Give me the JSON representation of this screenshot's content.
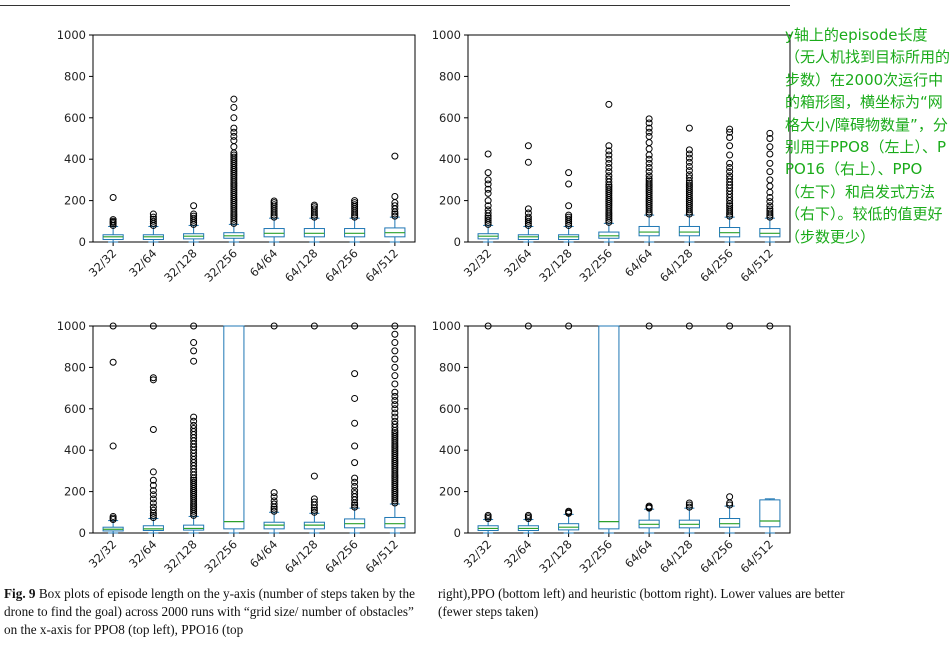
{
  "annotation": {
    "text": "y轴上的episode长度（无人机找到目标所用的步数）在2000次运行中的箱形图，横坐标为“网格大小/障碍物数量”，分别用于PPO8（左上）、PPO16（右上）、PPO（左下）和启发式方法（右下）。较低的值更好（步数更少）",
    "color": "#1aab1a"
  },
  "caption": {
    "label": "Fig. 9",
    "left_col": "Box plots of episode length on the y-axis (number of steps taken by the drone to find the goal) across 2000 runs with “grid size/ number of obstacles” on the x-axis for PPO8 (top left), PPO16 (top",
    "right_col": "right),PPO (bottom left) and heuristic (bottom right). Lower values are better (fewer steps taken)"
  },
  "colors": {
    "box": "#1f77b4",
    "median": "#2ca02c",
    "flier": "#000000"
  },
  "chart_data": [
    {
      "type": "box",
      "ylim": [
        0,
        1000
      ],
      "yticks": [
        "0",
        "200",
        "400",
        "600",
        "800",
        "1000"
      ],
      "categories": [
        "32/32",
        "32/64",
        "32/128",
        "32/256",
        "64/64",
        "64/128",
        "64/256",
        "64/512"
      ],
      "boxes": [
        {
          "q1": 12,
          "median": 25,
          "q3": 35,
          "whisker_low": 0,
          "whisker_high": 75,
          "fliers": [
            80,
            88,
            95,
            100,
            108,
            215
          ]
        },
        {
          "q1": 12,
          "median": 25,
          "q3": 35,
          "whisker_low": 0,
          "whisker_high": 75,
          "fliers": [
            80,
            90,
            100,
            110,
            120,
            135
          ]
        },
        {
          "q1": 15,
          "median": 28,
          "q3": 40,
          "whisker_low": 0,
          "whisker_high": 80,
          "fliers": [
            85,
            95,
            105,
            115,
            125,
            135,
            175
          ]
        },
        {
          "q1": 18,
          "median": 30,
          "q3": 45,
          "whisker_low": 0,
          "whisker_high": 85,
          "fliers": [
            90,
            100,
            110,
            120,
            130,
            140,
            150,
            160,
            170,
            180,
            190,
            200,
            210,
            220,
            230,
            240,
            250,
            260,
            270,
            280,
            290,
            300,
            310,
            320,
            330,
            340,
            350,
            360,
            370,
            380,
            390,
            400,
            410,
            420,
            430,
            460,
            490,
            510,
            530,
            550,
            600,
            650,
            690
          ]
        },
        {
          "q1": 25,
          "median": 42,
          "q3": 65,
          "whisker_low": 0,
          "whisker_high": 115,
          "fliers": [
            120,
            130,
            140,
            150,
            160,
            170,
            180,
            190,
            198
          ]
        },
        {
          "q1": 25,
          "median": 42,
          "q3": 65,
          "whisker_low": 0,
          "whisker_high": 115,
          "fliers": [
            120,
            130,
            140,
            150,
            160,
            170,
            178
          ]
        },
        {
          "q1": 25,
          "median": 42,
          "q3": 65,
          "whisker_low": 0,
          "whisker_high": 115,
          "fliers": [
            120,
            130,
            140,
            150,
            160,
            170,
            180,
            190,
            200
          ]
        },
        {
          "q1": 25,
          "median": 45,
          "q3": 68,
          "whisker_low": 0,
          "whisker_high": 120,
          "fliers": [
            125,
            135,
            145,
            160,
            175,
            190,
            220,
            415
          ]
        }
      ]
    },
    {
      "type": "box",
      "ylim": [
        0,
        1000
      ],
      "yticks": [
        "0",
        "200",
        "400",
        "600",
        "800",
        "1000"
      ],
      "categories": [
        "32/32",
        "32/64",
        "32/128",
        "32/256",
        "64/64",
        "64/128",
        "64/256",
        "64/512"
      ],
      "boxes": [
        {
          "q1": 15,
          "median": 28,
          "q3": 40,
          "whisker_low": 0,
          "whisker_high": 80,
          "fliers": [
            85,
            95,
            105,
            115,
            125,
            140,
            155,
            175,
            200,
            235,
            255,
            280,
            300,
            335,
            425
          ]
        },
        {
          "q1": 12,
          "median": 25,
          "q3": 35,
          "whisker_low": 0,
          "whisker_high": 75,
          "fliers": [
            80,
            90,
            100,
            110,
            120,
            140,
            160,
            385,
            465
          ]
        },
        {
          "q1": 12,
          "median": 25,
          "q3": 35,
          "whisker_low": 0,
          "whisker_high": 75,
          "fliers": [
            80,
            90,
            100,
            110,
            120,
            130,
            175,
            280,
            335
          ]
        },
        {
          "q1": 18,
          "median": 30,
          "q3": 48,
          "whisker_low": 0,
          "whisker_high": 90,
          "fliers": [
            95,
            105,
            115,
            125,
            135,
            145,
            155,
            165,
            175,
            185,
            195,
            205,
            215,
            225,
            235,
            245,
            255,
            265,
            275,
            290,
            305,
            320,
            340,
            360,
            380,
            400,
            420,
            440,
            465,
            665
          ]
        },
        {
          "q1": 30,
          "median": 48,
          "q3": 75,
          "whisker_low": 0,
          "whisker_high": 130,
          "fliers": [
            135,
            145,
            155,
            165,
            175,
            185,
            195,
            205,
            215,
            225,
            235,
            245,
            255,
            265,
            275,
            285,
            295,
            305,
            320,
            340,
            360,
            380,
            400,
            420,
            450,
            480,
            510,
            530,
            550,
            575,
            595
          ]
        },
        {
          "q1": 30,
          "median": 48,
          "q3": 75,
          "whisker_low": 0,
          "whisker_high": 130,
          "fliers": [
            135,
            145,
            155,
            165,
            175,
            185,
            195,
            205,
            215,
            225,
            235,
            245,
            255,
            265,
            275,
            285,
            295,
            310,
            325,
            345,
            365,
            385,
            405,
            425,
            445,
            550
          ]
        },
        {
          "q1": 25,
          "median": 45,
          "q3": 70,
          "whisker_low": 0,
          "whisker_high": 120,
          "fliers": [
            125,
            135,
            145,
            155,
            165,
            175,
            185,
            200,
            215,
            230,
            245,
            260,
            275,
            290,
            305,
            320,
            340,
            360,
            380,
            420,
            465,
            505,
            530,
            545
          ]
        },
        {
          "q1": 25,
          "median": 42,
          "q3": 65,
          "whisker_low": 0,
          "whisker_high": 115,
          "fliers": [
            120,
            130,
            140,
            150,
            160,
            175,
            195,
            215,
            240,
            270,
            300,
            340,
            380,
            425,
            460,
            500,
            525
          ]
        }
      ]
    },
    {
      "type": "box",
      "ylim": [
        0,
        1000
      ],
      "yticks": [
        "0",
        "200",
        "400",
        "600",
        "800",
        "1000"
      ],
      "categories": [
        "32/32",
        "32/64",
        "32/128",
        "32/256",
        "64/64",
        "64/128",
        "64/256",
        "64/512"
      ],
      "boxes": [
        {
          "q1": 10,
          "median": 18,
          "q3": 28,
          "whisker_low": 0,
          "whisker_high": 60,
          "fliers": [
            65,
            72,
            80,
            420,
            825,
            1000
          ]
        },
        {
          "q1": 12,
          "median": 20,
          "q3": 35,
          "whisker_low": 0,
          "whisker_high": 70,
          "fliers": [
            75,
            85,
            95,
            110,
            125,
            145,
            165,
            185,
            205,
            230,
            255,
            295,
            500,
            740,
            750,
            1000
          ]
        },
        {
          "q1": 14,
          "median": 22,
          "q3": 38,
          "whisker_low": 0,
          "whisker_high": 80,
          "fliers": [
            85,
            95,
            105,
            115,
            125,
            135,
            145,
            155,
            165,
            175,
            185,
            195,
            205,
            215,
            225,
            235,
            245,
            255,
            265,
            280,
            295,
            310,
            325,
            340,
            355,
            370,
            385,
            400,
            415,
            430,
            445,
            460,
            475,
            490,
            505,
            520,
            540,
            560,
            830,
            880,
            920,
            1000
          ]
        },
        {
          "q1": 20,
          "median": 55,
          "q3": 1000,
          "whisker_low": 0,
          "whisker_high": 1000,
          "fliers": []
        },
        {
          "q1": 20,
          "median": 38,
          "q3": 52,
          "whisker_low": 0,
          "whisker_high": 100,
          "fliers": [
            105,
            115,
            125,
            140,
            155,
            175,
            195,
            1000
          ]
        },
        {
          "q1": 20,
          "median": 38,
          "q3": 52,
          "whisker_low": 0,
          "whisker_high": 95,
          "fliers": [
            100,
            110,
            120,
            135,
            150,
            165,
            275,
            1000
          ]
        },
        {
          "q1": 25,
          "median": 45,
          "q3": 68,
          "whisker_low": 0,
          "whisker_high": 120,
          "fliers": [
            125,
            135,
            145,
            160,
            175,
            190,
            205,
            225,
            245,
            265,
            340,
            420,
            530,
            650,
            770,
            1000
          ]
        },
        {
          "q1": 25,
          "median": 45,
          "q3": 75,
          "whisker_low": 0,
          "whisker_high": 140,
          "fliers": [
            145,
            155,
            165,
            175,
            185,
            195,
            205,
            215,
            225,
            235,
            245,
            255,
            265,
            275,
            285,
            295,
            305,
            315,
            325,
            335,
            345,
            355,
            365,
            375,
            385,
            395,
            405,
            415,
            425,
            435,
            445,
            455,
            465,
            475,
            485,
            495,
            510,
            525,
            540,
            560,
            580,
            600,
            620,
            640,
            660,
            680,
            720,
            760,
            800,
            840,
            880,
            920,
            960,
            1000
          ]
        }
      ]
    },
    {
      "type": "box",
      "ylim": [
        0,
        1000
      ],
      "yticks": [
        "0",
        "200",
        "400",
        "600",
        "800",
        "1000"
      ],
      "categories": [
        "32/32",
        "32/64",
        "32/128",
        "32/256",
        "64/64",
        "64/128",
        "64/256",
        "64/512"
      ],
      "boxes": [
        {
          "q1": 12,
          "median": 22,
          "q3": 35,
          "whisker_low": 0,
          "whisker_high": 65,
          "fliers": [
            70,
            78,
            85,
            1000
          ]
        },
        {
          "q1": 12,
          "median": 22,
          "q3": 35,
          "whisker_low": 0,
          "whisker_high": 65,
          "fliers": [
            70,
            78,
            85,
            1000
          ]
        },
        {
          "q1": 15,
          "median": 28,
          "q3": 45,
          "whisker_low": 0,
          "whisker_high": 90,
          "fliers": [
            95,
            100,
            105,
            1000
          ]
        },
        {
          "q1": 20,
          "median": 55,
          "q3": 1000,
          "whisker_low": 0,
          "whisker_high": 1000,
          "fliers": []
        },
        {
          "q1": 25,
          "median": 42,
          "q3": 62,
          "whisker_low": 0,
          "whisker_high": 115,
          "fliers": [
            120,
            125,
            130,
            1000
          ]
        },
        {
          "q1": 25,
          "median": 42,
          "q3": 62,
          "whisker_low": 0,
          "whisker_high": 120,
          "fliers": [
            125,
            135,
            145,
            1000
          ]
        },
        {
          "q1": 28,
          "median": 45,
          "q3": 70,
          "whisker_low": 0,
          "whisker_high": 130,
          "fliers": [
            135,
            145,
            175,
            1000
          ]
        },
        {
          "q1": 30,
          "median": 58,
          "q3": 160,
          "whisker_low": 0,
          "whisker_high": 165,
          "fliers": [
            1000
          ]
        }
      ]
    }
  ]
}
